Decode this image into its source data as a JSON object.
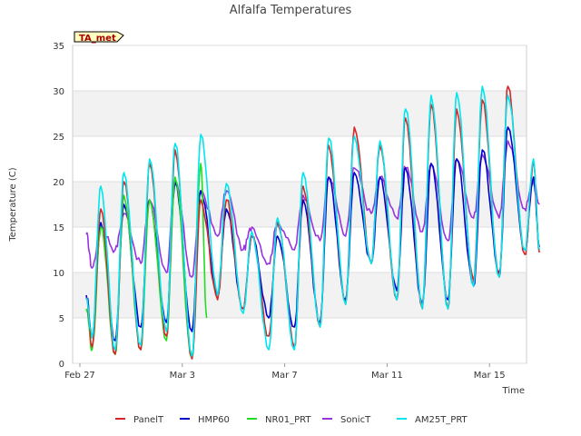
{
  "chart_data": {
    "type": "line",
    "title": "Alfalfa Temperatures",
    "xlabel": "Time",
    "ylabel": "Temperature (C)",
    "badge": "TA_met",
    "x_ticks": [
      "Feb 27",
      "Mar 3",
      "Mar 7",
      "Mar 11",
      "Mar 15"
    ],
    "x_tick_days": [
      0,
      4,
      8,
      12,
      16
    ],
    "x_range_days": [
      0,
      18
    ],
    "ylim": [
      0,
      35
    ],
    "y_ticks": [
      "0",
      "5",
      "10",
      "15",
      "20",
      "25",
      "30",
      "35"
    ],
    "grid": true,
    "legend_position": "bottom",
    "days": [
      0.2,
      1.1,
      2.1,
      3.1,
      4.1,
      5.1,
      6.1,
      7.1,
      8.1,
      9.1,
      10.1,
      11.1,
      12.1,
      13.1,
      14.1,
      15.1,
      16.1,
      17.1
    ],
    "series": [
      {
        "name": "PanelT",
        "color": "#d62728",
        "start": 7.2,
        "end": 12.2,
        "max": [
          17.0,
          20.0,
          22.0,
          23.5,
          18.0,
          18.0,
          14.0,
          15.5,
          19.5,
          24.0,
          26.0,
          24.0,
          27.0,
          28.5,
          28.0,
          29.0,
          30.5,
          22.0
        ],
        "min": [
          1.8,
          1.0,
          1.5,
          3.0,
          0.5,
          7.0,
          6.0,
          3.0,
          1.8,
          4.0,
          6.5,
          11.0,
          7.0,
          6.0,
          6.0,
          9.0,
          9.5,
          12.0
        ]
      },
      {
        "name": "HMP60",
        "color": "#0000cc",
        "start": 7.5,
        "end": 12.8,
        "max": [
          15.5,
          17.5,
          18.0,
          20.0,
          19.0,
          17.0,
          14.0,
          14.0,
          18.0,
          20.5,
          21.0,
          20.5,
          21.5,
          22.0,
          22.5,
          23.5,
          26.0,
          20.5
        ],
        "min": [
          3.0,
          2.5,
          4.0,
          4.5,
          3.5,
          7.5,
          6.0,
          5.0,
          4.0,
          4.5,
          7.0,
          11.0,
          8.0,
          6.5,
          7.0,
          8.5,
          10.0,
          12.5
        ]
      },
      {
        "name": "NR01_PRT",
        "color": "#22dd22",
        "start": 6.0,
        "end": 5.0,
        "max": [
          15.0,
          18.5,
          18.0,
          20.5,
          22.0
        ],
        "min": [
          1.5,
          1.0,
          1.5,
          2.5,
          0.5
        ]
      },
      {
        "name": "SonicT",
        "color": "#9933dd",
        "start": 14.2,
        "end": 17.5,
        "max": [
          15.0,
          16.5,
          18.0,
          20.0,
          19.0,
          19.0,
          15.0,
          15.5,
          18.5,
          20.5,
          21.5,
          20.5,
          21.5,
          22.0,
          22.5,
          23.0,
          24.5,
          20.0
        ],
        "min": [
          10.5,
          12.5,
          11.0,
          10.0,
          9.5,
          14.0,
          12.5,
          11.0,
          12.5,
          13.5,
          14.0,
          16.5,
          16.0,
          14.5,
          13.5,
          16.0,
          16.0,
          17.0
        ]
      },
      {
        "name": "AM25T_PRT",
        "color": "#00e5ee",
        "start": 7.0,
        "end": 12.5,
        "max": [
          19.5,
          21.0,
          22.5,
          24.2,
          25.2,
          19.8,
          14.5,
          16.0,
          21.0,
          24.8,
          25.0,
          24.5,
          28.0,
          29.5,
          29.8,
          30.5,
          29.5,
          22.5
        ],
        "min": [
          2.8,
          1.5,
          2.0,
          3.5,
          0.8,
          7.5,
          5.5,
          1.5,
          1.5,
          4.0,
          6.5,
          11.0,
          7.0,
          6.0,
          6.0,
          8.5,
          9.5,
          12.5
        ]
      }
    ]
  }
}
